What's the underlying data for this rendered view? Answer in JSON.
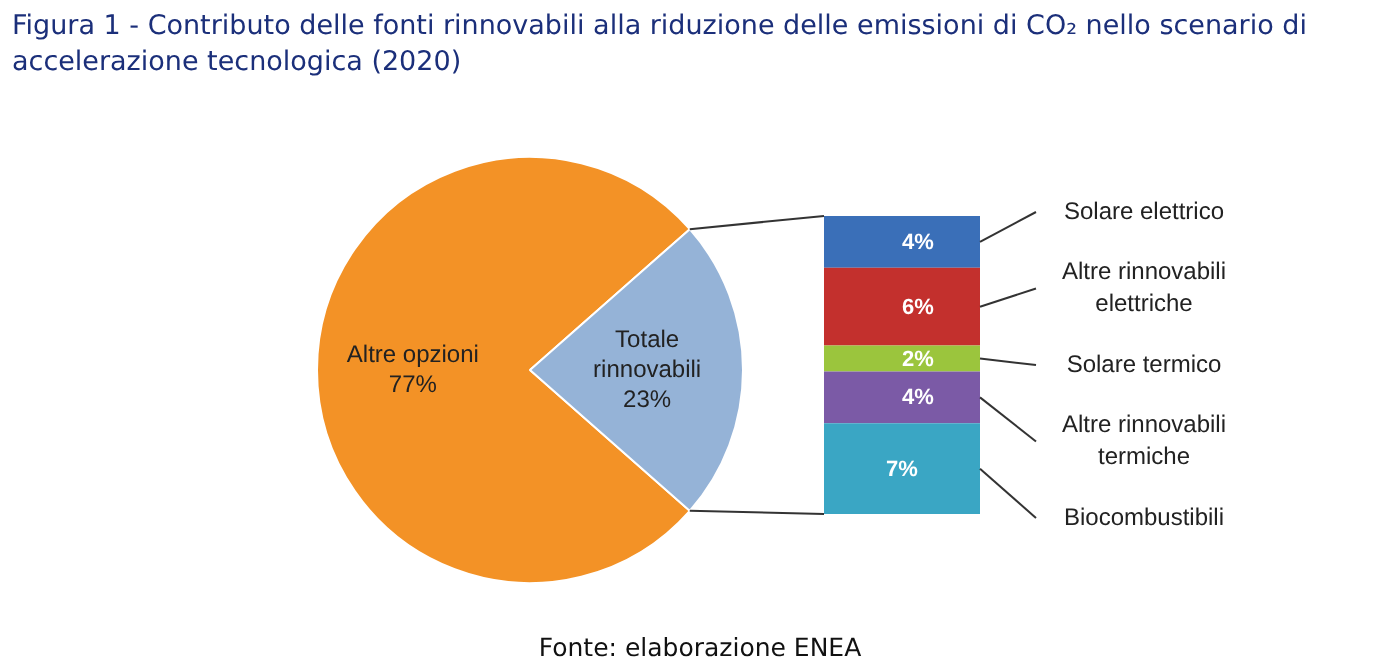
{
  "chart_data": [
    {
      "type": "pie",
      "title": "Figura 1 - Contributo delle fonti rinnovabili alla riduzione delle emissioni di CO₂ nello scenario di accelerazione tecnologica (2020)",
      "categories": [
        "Altre opzioni",
        "Totale rinnovabili"
      ],
      "values": [
        77,
        23
      ],
      "colors": [
        "#f39226",
        "#95b3d7"
      ],
      "value_labels": [
        "77%",
        "23%"
      ],
      "legend": false
    },
    {
      "type": "bar",
      "stacked": true,
      "categories": [
        null
      ],
      "tick_labels": false,
      "data_labels": true,
      "legend": false,
      "annotations": [
        "Fonte: elaborazione ENEA"
      ],
      "series": [
        {
          "name": "Biocombustibili",
          "color": "#3aa6c4",
          "values": [
            7
          ],
          "value_labels": [
            "7%"
          ]
        },
        {
          "name": "Altre rinnovabili termiche",
          "color": "#7b5aa6",
          "values": [
            4
          ],
          "value_labels": [
            "4%"
          ]
        },
        {
          "name": "Solare termico",
          "color": "#9bc53d",
          "values": [
            2
          ],
          "value_labels": [
            "2%"
          ]
        },
        {
          "name": "Altre rinnovabili elettriche",
          "color": "#c3302d",
          "values": [
            6
          ],
          "value_labels": [
            "6%"
          ]
        },
        {
          "name": "Solare elettrico",
          "color": "#3a6fb8",
          "values": [
            4
          ],
          "value_labels": [
            "4%"
          ]
        }
      ]
    }
  ]
}
